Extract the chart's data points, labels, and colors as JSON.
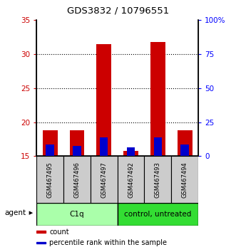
{
  "title": "GDS3832 / 10796551",
  "samples": [
    "GSM467495",
    "GSM467496",
    "GSM467497",
    "GSM467492",
    "GSM467493",
    "GSM467494"
  ],
  "red_tops": [
    18.8,
    18.8,
    31.5,
    15.8,
    31.8,
    18.8
  ],
  "blue_tops": [
    16.7,
    16.5,
    17.8,
    16.3,
    17.8,
    16.7
  ],
  "base": 15.0,
  "ylim_left": [
    15,
    35
  ],
  "ylim_right": [
    0,
    100
  ],
  "yticks_left": [
    15,
    20,
    25,
    30,
    35
  ],
  "yticks_right": [
    0,
    25,
    50,
    75,
    100
  ],
  "ytick_labels_right": [
    "0",
    "25",
    "50",
    "75",
    "100%"
  ],
  "grid_lines": [
    20,
    25,
    30
  ],
  "groups": [
    {
      "label": "C1q",
      "indices": [
        0,
        1,
        2
      ],
      "color": "#aaffaa"
    },
    {
      "label": "control, untreated",
      "indices": [
        3,
        4,
        5
      ],
      "color": "#33dd33"
    }
  ],
  "bar_width": 0.55,
  "red_color": "#cc0000",
  "blue_color": "#0000cc",
  "agent_label": "agent",
  "legend_items": [
    {
      "label": "count",
      "color": "#cc0000"
    },
    {
      "label": "percentile rank within the sample",
      "color": "#0000cc"
    }
  ],
  "left_axis_color": "#cc0000",
  "right_axis_color": "#0000ff",
  "sample_box_color": "#cccccc"
}
